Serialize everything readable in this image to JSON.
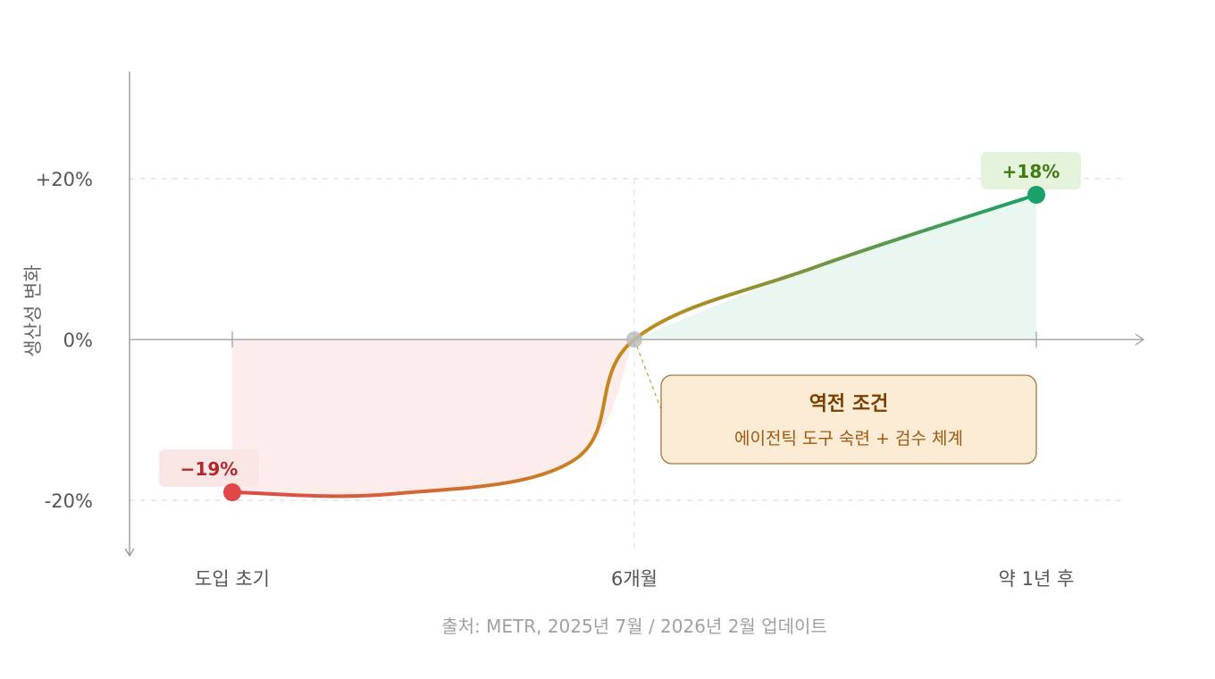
{
  "chart_data": {
    "type": "line",
    "categories": [
      "도입 초기",
      "6개월",
      "약 1년 후"
    ],
    "series": [
      {
        "values": [
          -19,
          0,
          18
        ],
        "curve": [
          {
            "x": 0,
            "y": -19
          },
          {
            "x": 0.4,
            "y": -19.2
          },
          {
            "x": 0.85,
            "y": -15
          },
          {
            "x": 1,
            "y": 0
          },
          {
            "x": 1.45,
            "y": 9
          },
          {
            "x": 2,
            "y": 18
          }
        ]
      }
    ],
    "ylabel": "생산성 변화",
    "yticks": [
      "+20%",
      "0%",
      "-20%"
    ],
    "ylim": [
      -26,
      33
    ],
    "grid": true,
    "point_labels": [
      {
        "text": "−19%",
        "value": -19
      },
      {
        "text": "+18%",
        "value": 18
      }
    ],
    "annotation": {
      "title": "역전 조건",
      "subtitle": "에이전틱 도구 숙련 + 검수 체계",
      "anchor_category": "6개월"
    },
    "colors": {
      "negative": "#e04848",
      "neutral": "#c48a1c",
      "positive": "#1aa06a",
      "negative_fill": "#fcecec",
      "positive_fill": "#eaf6f0",
      "neg_label_bg": "#fbe6e6",
      "neg_label_text": "#b3262e",
      "pos_label_bg": "#e6f3dc",
      "pos_label_text": "#3f7a12",
      "annotation_bg": "#fcebd5",
      "annotation_border": "#a07843",
      "pivot_dot": "#bdbdbd"
    }
  },
  "source": "출처: METR, 2025년 7월 / 2026년 2월 업데이트"
}
